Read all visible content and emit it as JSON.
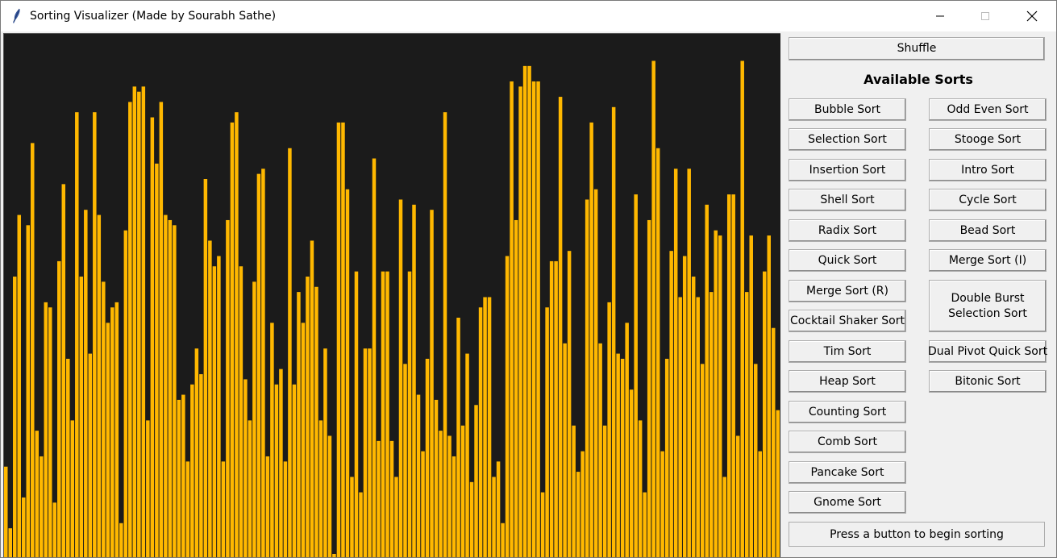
{
  "window": {
    "title": "Sorting Visualizer (Made by Sourabh Sathe)",
    "icon": "feather-icon"
  },
  "controls": {
    "shuffle_label": "Shuffle",
    "heading": "Available Sorts",
    "status": "Press a button to begin sorting"
  },
  "sorts_left": [
    "Bubble Sort",
    "Selection Sort",
    "Insertion Sort",
    "Shell Sort",
    "Radix Sort",
    "Quick Sort",
    "Merge Sort (R)",
    "Cocktail Shaker Sort",
    "Tim Sort",
    "Heap Sort",
    "Counting Sort",
    "Comb Sort",
    "Pancake Sort",
    "Gnome Sort"
  ],
  "sorts_right": [
    "Odd Even Sort",
    "Stooge Sort",
    "Intro Sort",
    "Cycle Sort",
    "Bead Sort",
    "Merge Sort (I)",
    "Double Burst Selection Sort",
    "Dual Pivot Quick Sort",
    "Bitonic Sort"
  ],
  "colors": {
    "bar": "#ffb800",
    "bar_border": "#1b1b1b",
    "canvas_bg": "#1b1b1b"
  },
  "chart_data": {
    "type": "bar",
    "values": [
      17,
      5,
      54,
      66,
      11,
      64,
      80,
      24,
      19,
      49,
      48,
      10,
      57,
      72,
      38,
      26,
      86,
      54,
      67,
      39,
      86,
      66,
      53,
      45,
      48,
      49,
      6,
      63,
      88,
      91,
      90,
      91,
      26,
      85,
      76,
      88,
      66,
      65,
      64,
      30,
      31,
      18,
      33,
      40,
      35,
      73,
      61,
      56,
      58,
      18,
      65,
      84,
      86,
      56,
      34,
      26,
      53,
      74,
      75,
      19,
      45,
      33,
      36,
      18,
      79,
      33,
      51,
      45,
      54,
      61,
      52,
      26,
      40,
      23,
      0,
      84,
      84,
      71,
      15,
      55,
      12,
      40,
      40,
      77,
      22,
      55,
      55,
      22,
      15,
      69,
      37,
      55,
      68,
      31,
      20,
      38,
      67,
      30,
      24,
      86,
      23,
      19,
      46,
      25,
      39,
      14,
      29,
      48,
      50,
      50,
      15,
      18,
      6,
      58,
      92,
      65,
      91,
      95,
      95,
      92,
      92,
      12,
      48,
      57,
      57,
      89,
      41,
      59,
      25,
      16,
      20,
      69,
      84,
      71,
      41,
      25,
      49,
      87,
      39,
      38,
      45,
      32,
      70,
      26,
      12,
      65,
      96,
      79,
      20,
      38,
      59,
      75,
      50,
      58,
      75,
      54,
      50,
      37,
      68,
      51,
      63,
      62,
      15,
      70,
      70,
      23,
      96,
      51,
      62,
      37,
      20,
      55,
      62,
      44,
      28
    ]
  }
}
